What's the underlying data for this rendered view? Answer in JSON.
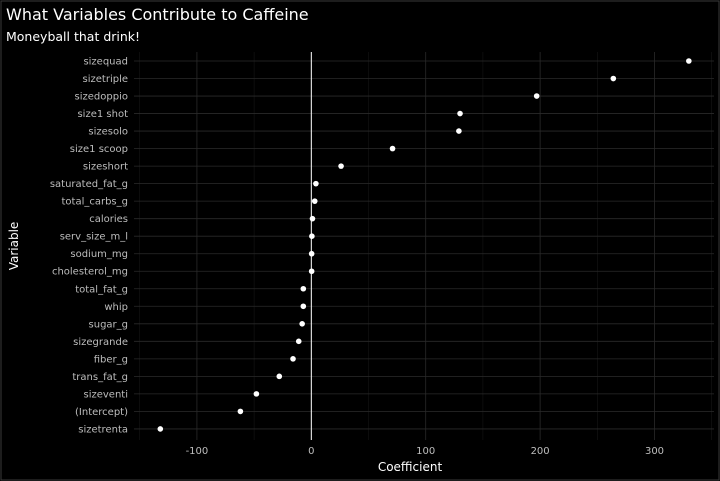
{
  "chart_data": {
    "type": "scatter",
    "title": "What Variables Contribute to Caffeine",
    "subtitle": "Moneyball that drink!",
    "xlabel": "Coefficient",
    "ylabel": "Variable",
    "xlim": [
      -155,
      352
    ],
    "x_ticks": [
      -100,
      0,
      100,
      200,
      300
    ],
    "reference_line_x": 0,
    "grid": true,
    "point_color": "#ffffff",
    "background": "#000000",
    "categories": [
      "sizequad",
      "sizetriple",
      "sizedoppio",
      "size1 shot",
      "sizesolo",
      "size1 scoop",
      "sizeshort",
      "saturated_fat_g",
      "total_carbs_g",
      "calories",
      "serv_size_m_l",
      "sodium_mg",
      "cholesterol_mg",
      "total_fat_g",
      "whip",
      "sugar_g",
      "sizegrande",
      "fiber_g",
      "trans_fat_g",
      "sizeventi",
      "(Intercept)",
      "sizetrenta"
    ],
    "values": [
      330,
      264,
      197,
      130,
      129,
      71,
      26,
      4,
      3,
      1,
      0.5,
      0.3,
      0.3,
      -7,
      -7,
      -8,
      -11,
      -16,
      -28,
      -48,
      -62,
      -132
    ]
  }
}
